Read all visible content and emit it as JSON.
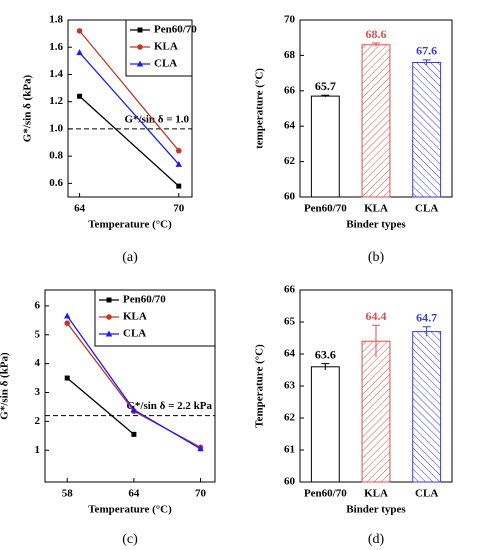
{
  "chart_data": [
    {
      "type": "line",
      "caption": "(a)",
      "xlabel": "Temperature (°C)",
      "ylabel": "G*/sin δ (kPa)",
      "x": [
        64,
        70
      ],
      "xlim": [
        63.3,
        70.8
      ],
      "xticks": [
        64,
        70
      ],
      "ylim": [
        0.5,
        1.8
      ],
      "yticks": [
        0.6,
        0.8,
        {
          "value": 1,
          "label": "1.0"
        },
        1.2,
        1.4,
        1.6,
        1.8
      ],
      "legend": "upper right",
      "reference_line": {
        "value": 1,
        "label": "G*/sin δ = 1.0"
      },
      "series": [
        {
          "name": "Pen60/70",
          "color": "#000000",
          "marker": "square",
          "values": [
            1.24,
            0.58
          ]
        },
        {
          "name": "KLA",
          "color": "#c0392b",
          "marker": "circle",
          "values": [
            1.72,
            0.84
          ]
        },
        {
          "name": "CLA",
          "color": "#1a1aff",
          "marker": "triangle",
          "values": [
            1.56,
            0.74
          ]
        }
      ]
    },
    {
      "type": "bar",
      "caption": "(b)",
      "xlabel": "Binder types",
      "ylabel": "temperature (°C)",
      "categories": [
        "Pen60/70",
        "KLA",
        "CLA"
      ],
      "values": [
        65.7,
        68.6,
        67.6
      ],
      "errors": [
        0.05,
        0.1,
        0.15
      ],
      "colors": [
        "#000000",
        "#d9534f",
        "#3a3ad6"
      ],
      "hatch": [
        false,
        true,
        true
      ],
      "ylim": [
        60,
        70
      ],
      "yticks": [
        60,
        62,
        64,
        66,
        68,
        70
      ]
    },
    {
      "type": "line",
      "caption": "(c)",
      "xlabel": "Temperature (°C)",
      "ylabel": "G*/sin δ (kPa)",
      "x": [
        58,
        64,
        70
      ],
      "xlim": [
        56,
        71.3
      ],
      "xticks": [
        58,
        64,
        70
      ],
      "ylim": [
        -0.1,
        6.55
      ],
      "yticks": [
        1,
        2,
        3,
        4,
        5,
        6
      ],
      "legend": "upper right",
      "reference_line": {
        "value": 2.2,
        "label": "G*/sin δ = 2.2 kPa"
      },
      "series": [
        {
          "name": "Pen60/70",
          "color": "#000000",
          "marker": "square",
          "values": [
            3.5,
            1.55,
            null
          ]
        },
        {
          "name": "KLA",
          "color": "#c0392b",
          "marker": "circle",
          "values": [
            5.4,
            2.35,
            1.1
          ]
        },
        {
          "name": "CLA",
          "color": "#1a1aff",
          "marker": "triangle",
          "values": [
            5.65,
            2.4,
            1.05
          ]
        }
      ]
    },
    {
      "type": "bar",
      "caption": "(d)",
      "xlabel": "Binder types",
      "ylabel": "Temperature (°C)",
      "categories": [
        "Pen60/70",
        "KLA",
        "CLA"
      ],
      "values": [
        63.6,
        64.4,
        64.7
      ],
      "errors": [
        0.1,
        0.5,
        0.15
      ],
      "colors": [
        "#000000",
        "#d9534f",
        "#3a3ad6"
      ],
      "hatch": [
        false,
        true,
        true
      ],
      "ylim": [
        60,
        66
      ],
      "yticks": [
        60,
        61,
        62,
        63,
        64,
        65,
        66
      ]
    }
  ]
}
